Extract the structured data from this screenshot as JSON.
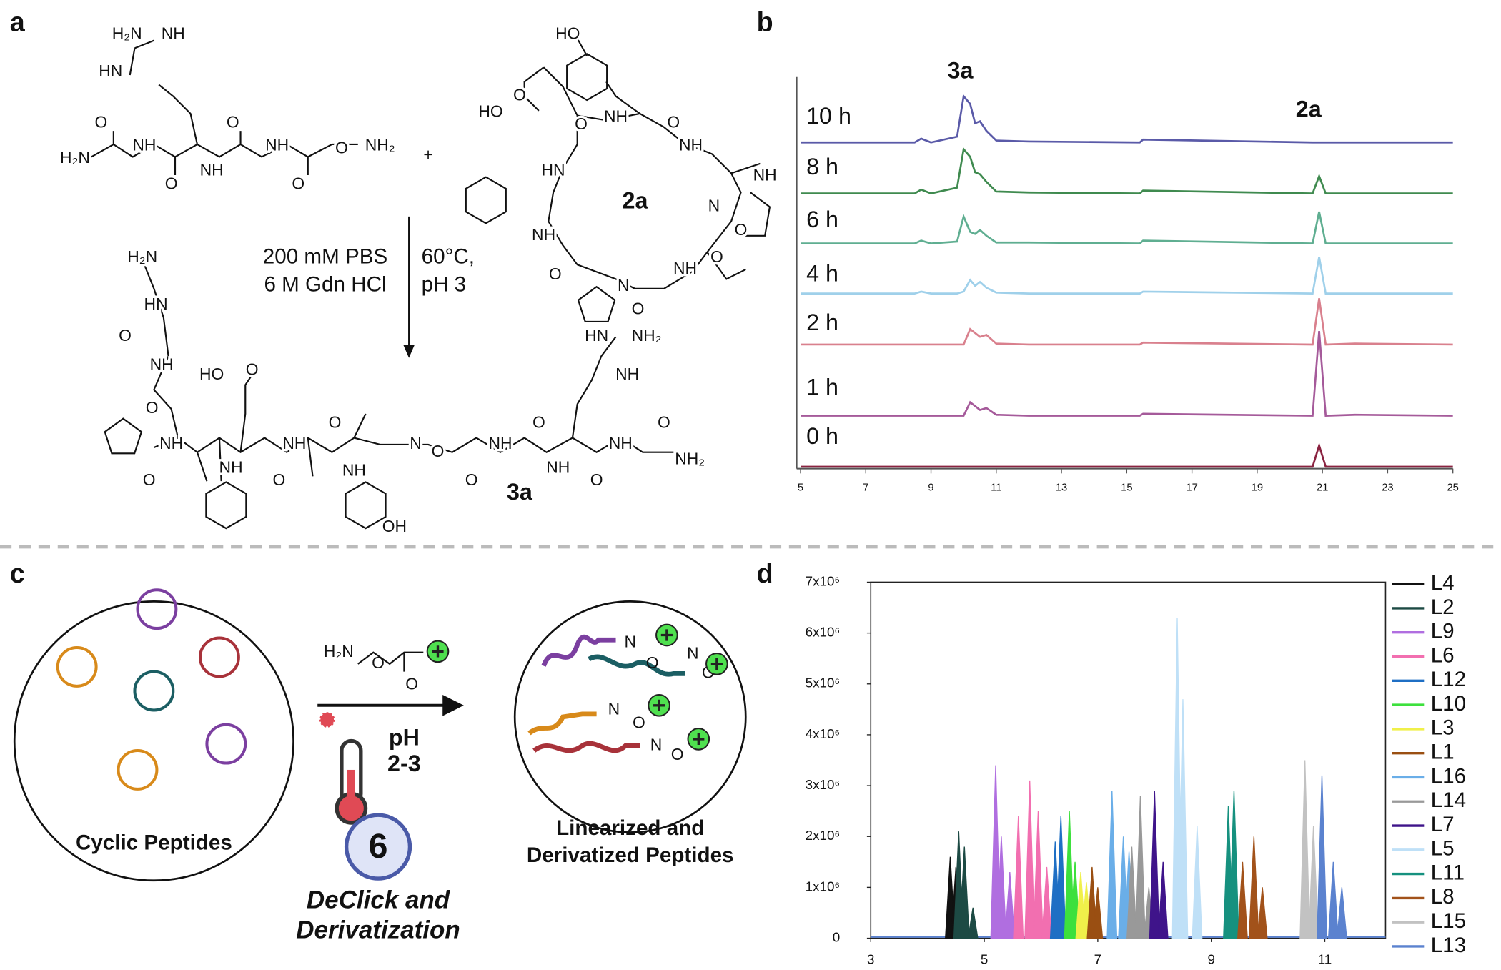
{
  "panel_labels": [
    "a",
    "b",
    "c",
    "d"
  ],
  "scheme_a": {
    "atoms": [
      "H₂N",
      "NH",
      "HN",
      "O",
      "O",
      "H₂N",
      "NH",
      "O",
      "NH",
      "O",
      "NH",
      "O",
      "NH₂",
      "+",
      "HO",
      "HO",
      "O",
      "O",
      "NH",
      "O",
      "NH",
      "HN",
      "NH",
      "N",
      "O",
      "NH",
      "O",
      "O",
      "N",
      "O",
      "NH",
      "H₂N",
      "HN",
      "O",
      "NH",
      "O",
      "HO",
      "O",
      "O",
      "NH",
      "NH",
      "O",
      "NH",
      "O",
      "NH",
      "N",
      "O",
      "O",
      "NH",
      "O",
      "NH",
      "O",
      "NH",
      "O",
      "NH₂",
      "HN",
      "NH₂",
      "NH",
      "OH"
    ],
    "compounds": [
      "2a",
      "3a"
    ],
    "conditions": [
      "200 mM PBS",
      "6 M Gdn HCl",
      "60°C,",
      "pH 3"
    ]
  },
  "scheme_c": {
    "reagent_atoms": [
      "H₂N",
      "O",
      "O"
    ],
    "product_atoms": [
      "N",
      "O",
      "N",
      "O",
      "N",
      "O",
      "N",
      "O"
    ],
    "conditions": [
      "pH",
      "2-3"
    ],
    "step_number": "6",
    "step_name": [
      "DeClick and",
      "Derivatization"
    ],
    "left_caption": "Cyclic Peptides",
    "right_caption": [
      "Linearized and",
      "Derivatized Peptides"
    ]
  },
  "chart_data": [
    {
      "type": "line",
      "annotations": [
        "3a",
        "2a"
      ],
      "x": [
        5,
        8.5,
        8.7,
        9,
        9.8,
        10.0,
        10.2,
        10.35,
        10.5,
        10.7,
        11,
        12,
        15.4,
        15.5,
        20.7,
        20.9,
        21.1,
        22,
        25
      ],
      "xlim": [
        5,
        25
      ],
      "xticks": [
        5,
        7,
        9,
        11,
        13,
        15,
        17,
        19,
        21,
        23,
        25
      ],
      "series": [
        {
          "name": "10 h",
          "color": "#5a5aa8",
          "values": [
            0,
            0,
            4,
            0,
            6,
            48,
            40,
            20,
            22,
            12,
            2,
            1,
            0,
            3,
            0,
            0,
            0,
            0,
            0
          ]
        },
        {
          "name": "8 h",
          "color": "#3f8a4f",
          "values": [
            0,
            0,
            4,
            0,
            6,
            46,
            38,
            22,
            20,
            12,
            2,
            1,
            0,
            3,
            0,
            18,
            0,
            0,
            0
          ]
        },
        {
          "name": "6 h",
          "color": "#5fae91",
          "values": [
            0,
            0,
            3,
            0,
            2,
            28,
            12,
            10,
            14,
            8,
            1,
            1,
            0,
            3,
            0,
            33,
            0,
            0,
            0
          ]
        },
        {
          "name": "4 h",
          "color": "#9fd0ea",
          "values": [
            0,
            0,
            2,
            0,
            0,
            2,
            14,
            8,
            12,
            6,
            1,
            0,
            0,
            2,
            0,
            38,
            0,
            0,
            0
          ]
        },
        {
          "name": "2 h",
          "color": "#d9808d",
          "values": [
            0,
            0,
            0,
            0,
            0,
            0,
            16,
            12,
            8,
            10,
            1,
            0,
            0,
            2,
            0,
            48,
            0,
            1,
            0
          ]
        },
        {
          "name": "1 h",
          "color": "#a55a9a",
          "values": [
            0,
            0,
            0,
            0,
            0,
            0,
            14,
            10,
            6,
            8,
            1,
            0,
            0,
            2,
            0,
            88,
            0,
            1,
            0
          ]
        },
        {
          "name": "0 h",
          "color": "#8a2240",
          "values": [
            0,
            0,
            0,
            0,
            0,
            0,
            0,
            0,
            0,
            0,
            0,
            0,
            0,
            0,
            0,
            22,
            0,
            0,
            0
          ]
        }
      ]
    },
    {
      "type": "spikes",
      "xlim": [
        3,
        12.07
      ],
      "ylim": [
        0,
        7000000
      ],
      "xticks": [
        3,
        5,
        7,
        9,
        11
      ],
      "yticks": [
        0,
        {
          "value": 1000000,
          "label": "1x10⁶"
        },
        {
          "value": 2000000,
          "label": "2x10⁶"
        },
        {
          "value": 3000000,
          "label": "3x10⁶"
        },
        {
          "value": 4000000,
          "label": "4x10⁶"
        },
        {
          "value": 5000000,
          "label": "5x10⁶"
        },
        {
          "value": 6000000,
          "label": "6x10⁶"
        },
        {
          "value": 7000000,
          "label": "7x10⁶"
        }
      ],
      "series": [
        {
          "name": "L4",
          "color": "#111111",
          "x": [
            4.4,
            4.5
          ],
          "values": [
            1600000,
            1400000
          ]
        },
        {
          "name": "L2",
          "color": "#1d4a44",
          "x": [
            4.55,
            4.65,
            4.8
          ],
          "values": [
            2100000,
            1800000,
            600000
          ]
        },
        {
          "name": "L9",
          "color": "#b06ee0",
          "x": [
            5.2,
            5.3,
            5.45
          ],
          "values": [
            3400000,
            2000000,
            1300000
          ]
        },
        {
          "name": "L6",
          "color": "#f26fb0",
          "x": [
            5.6,
            5.8,
            5.95,
            6.1
          ],
          "values": [
            2400000,
            3100000,
            2500000,
            1400000
          ]
        },
        {
          "name": "L12",
          "color": "#1f6fc4",
          "x": [
            6.25,
            6.35
          ],
          "values": [
            1900000,
            2400000
          ]
        },
        {
          "name": "L10",
          "color": "#3de03d",
          "x": [
            6.5,
            6.6
          ],
          "values": [
            2500000,
            1500000
          ]
        },
        {
          "name": "L3",
          "color": "#f0f04a",
          "x": [
            6.7,
            6.8
          ],
          "values": [
            1300000,
            1100000
          ]
        },
        {
          "name": "L1",
          "color": "#9a4f12",
          "x": [
            6.9,
            7.0
          ],
          "values": [
            1400000,
            1000000
          ]
        },
        {
          "name": "L16",
          "color": "#6aaee8",
          "x": [
            7.25,
            7.45,
            7.55
          ],
          "values": [
            2900000,
            2000000,
            1700000
          ]
        },
        {
          "name": "L14",
          "color": "#999999",
          "x": [
            7.6,
            7.75,
            7.9
          ],
          "values": [
            1800000,
            2800000,
            1000000
          ]
        },
        {
          "name": "L7",
          "color": "#3f148a",
          "x": [
            8.0,
            8.15
          ],
          "values": [
            2900000,
            1500000
          ]
        },
        {
          "name": "L5",
          "color": "#bfe0f7",
          "x": [
            8.4,
            8.5,
            8.75
          ],
          "values": [
            6300000,
            4700000,
            2200000
          ]
        },
        {
          "name": "L11",
          "color": "#16917f",
          "x": [
            9.3,
            9.4
          ],
          "values": [
            2600000,
            2900000
          ]
        },
        {
          "name": "L8",
          "color": "#a2521a",
          "x": [
            9.55,
            9.75,
            9.9
          ],
          "values": [
            1500000,
            2000000,
            1000000
          ]
        },
        {
          "name": "L15",
          "color": "#c2c2c2",
          "x": [
            10.65,
            10.8
          ],
          "values": [
            3500000,
            2200000
          ]
        },
        {
          "name": "L13",
          "color": "#5b82cf",
          "x": [
            10.95,
            11.15,
            11.3
          ],
          "values": [
            3200000,
            1500000,
            1000000
          ]
        }
      ]
    }
  ]
}
